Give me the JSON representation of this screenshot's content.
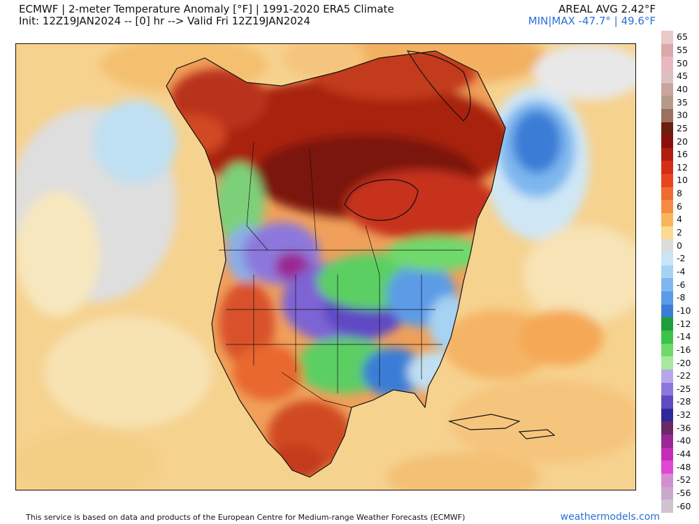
{
  "header": {
    "title_line1": "ECMWF | 2-meter Temperature Anomaly [°F] | 1991-2020 ERA5 Climate",
    "title_line2": "Init: 12Z19JAN2024 -- [0] hr --> Valid Fri 12Z19JAN2024",
    "areal_avg": "AREAL AVG 2.42°F",
    "min_max": "MIN|MAX -47.7° | 49.6°F"
  },
  "colorbar": {
    "labels": [
      "65",
      "55",
      "50",
      "45",
      "40",
      "35",
      "30",
      "25",
      "20",
      "16",
      "12",
      "10",
      "8",
      "6",
      "4",
      "2",
      "0",
      "-2",
      "-4",
      "-6",
      "-8",
      "-10",
      "-12",
      "-14",
      "-16",
      "-20",
      "-22",
      "-25",
      "-28",
      "-32",
      "-36",
      "-40",
      "-44",
      "-48",
      "-52",
      "-56",
      "-60"
    ],
    "colors": [
      "#e8c8c8",
      "#d9a8a8",
      "#e8b8c0",
      "#dcc0c0",
      "#c9a59c",
      "#b59a8a",
      "#9a7060",
      "#6a1f10",
      "#8b0f0c",
      "#b01c10",
      "#d42d18",
      "#e8451e",
      "#f06b30",
      "#f58c43",
      "#f9b45c",
      "#fad990",
      "#dcdcdc",
      "#c9e4f4",
      "#a6d3f2",
      "#7eb7ef",
      "#5b9be6",
      "#3a7dd6",
      "#1d9e3a",
      "#3cc24a",
      "#70d96c",
      "#a8e7a0",
      "#b8a6ec",
      "#8c78dc",
      "#5f4ac4",
      "#2e2a9a",
      "#6a2a66",
      "#9a2894",
      "#c32cb6",
      "#de46d6",
      "#d38ed0",
      "#c8a8cc",
      "#cfc3cf"
    ]
  },
  "map": {
    "region": "North America",
    "colors": {
      "ocean_warm": "#f8d9a0",
      "ocean_mild": "#f7e3b5",
      "neutral_gray": "#d6d6d6",
      "cold_blue": "#5f9ee8",
      "deep_blue": "#3a7ddf",
      "very_warm": "#8b1a10",
      "warm_red": "#d64a22",
      "warm_orange": "#f08a3e",
      "cold_green": "#5ccf63",
      "cold_purple": "#7d64d4",
      "extreme_cold": "#a628a0",
      "border": "#111111"
    }
  },
  "footer": {
    "credit": "This service is based on data and products of the European Centre for Medium-range Weather Forecasts (ECMWF)",
    "brand": "weathermodels.com"
  }
}
